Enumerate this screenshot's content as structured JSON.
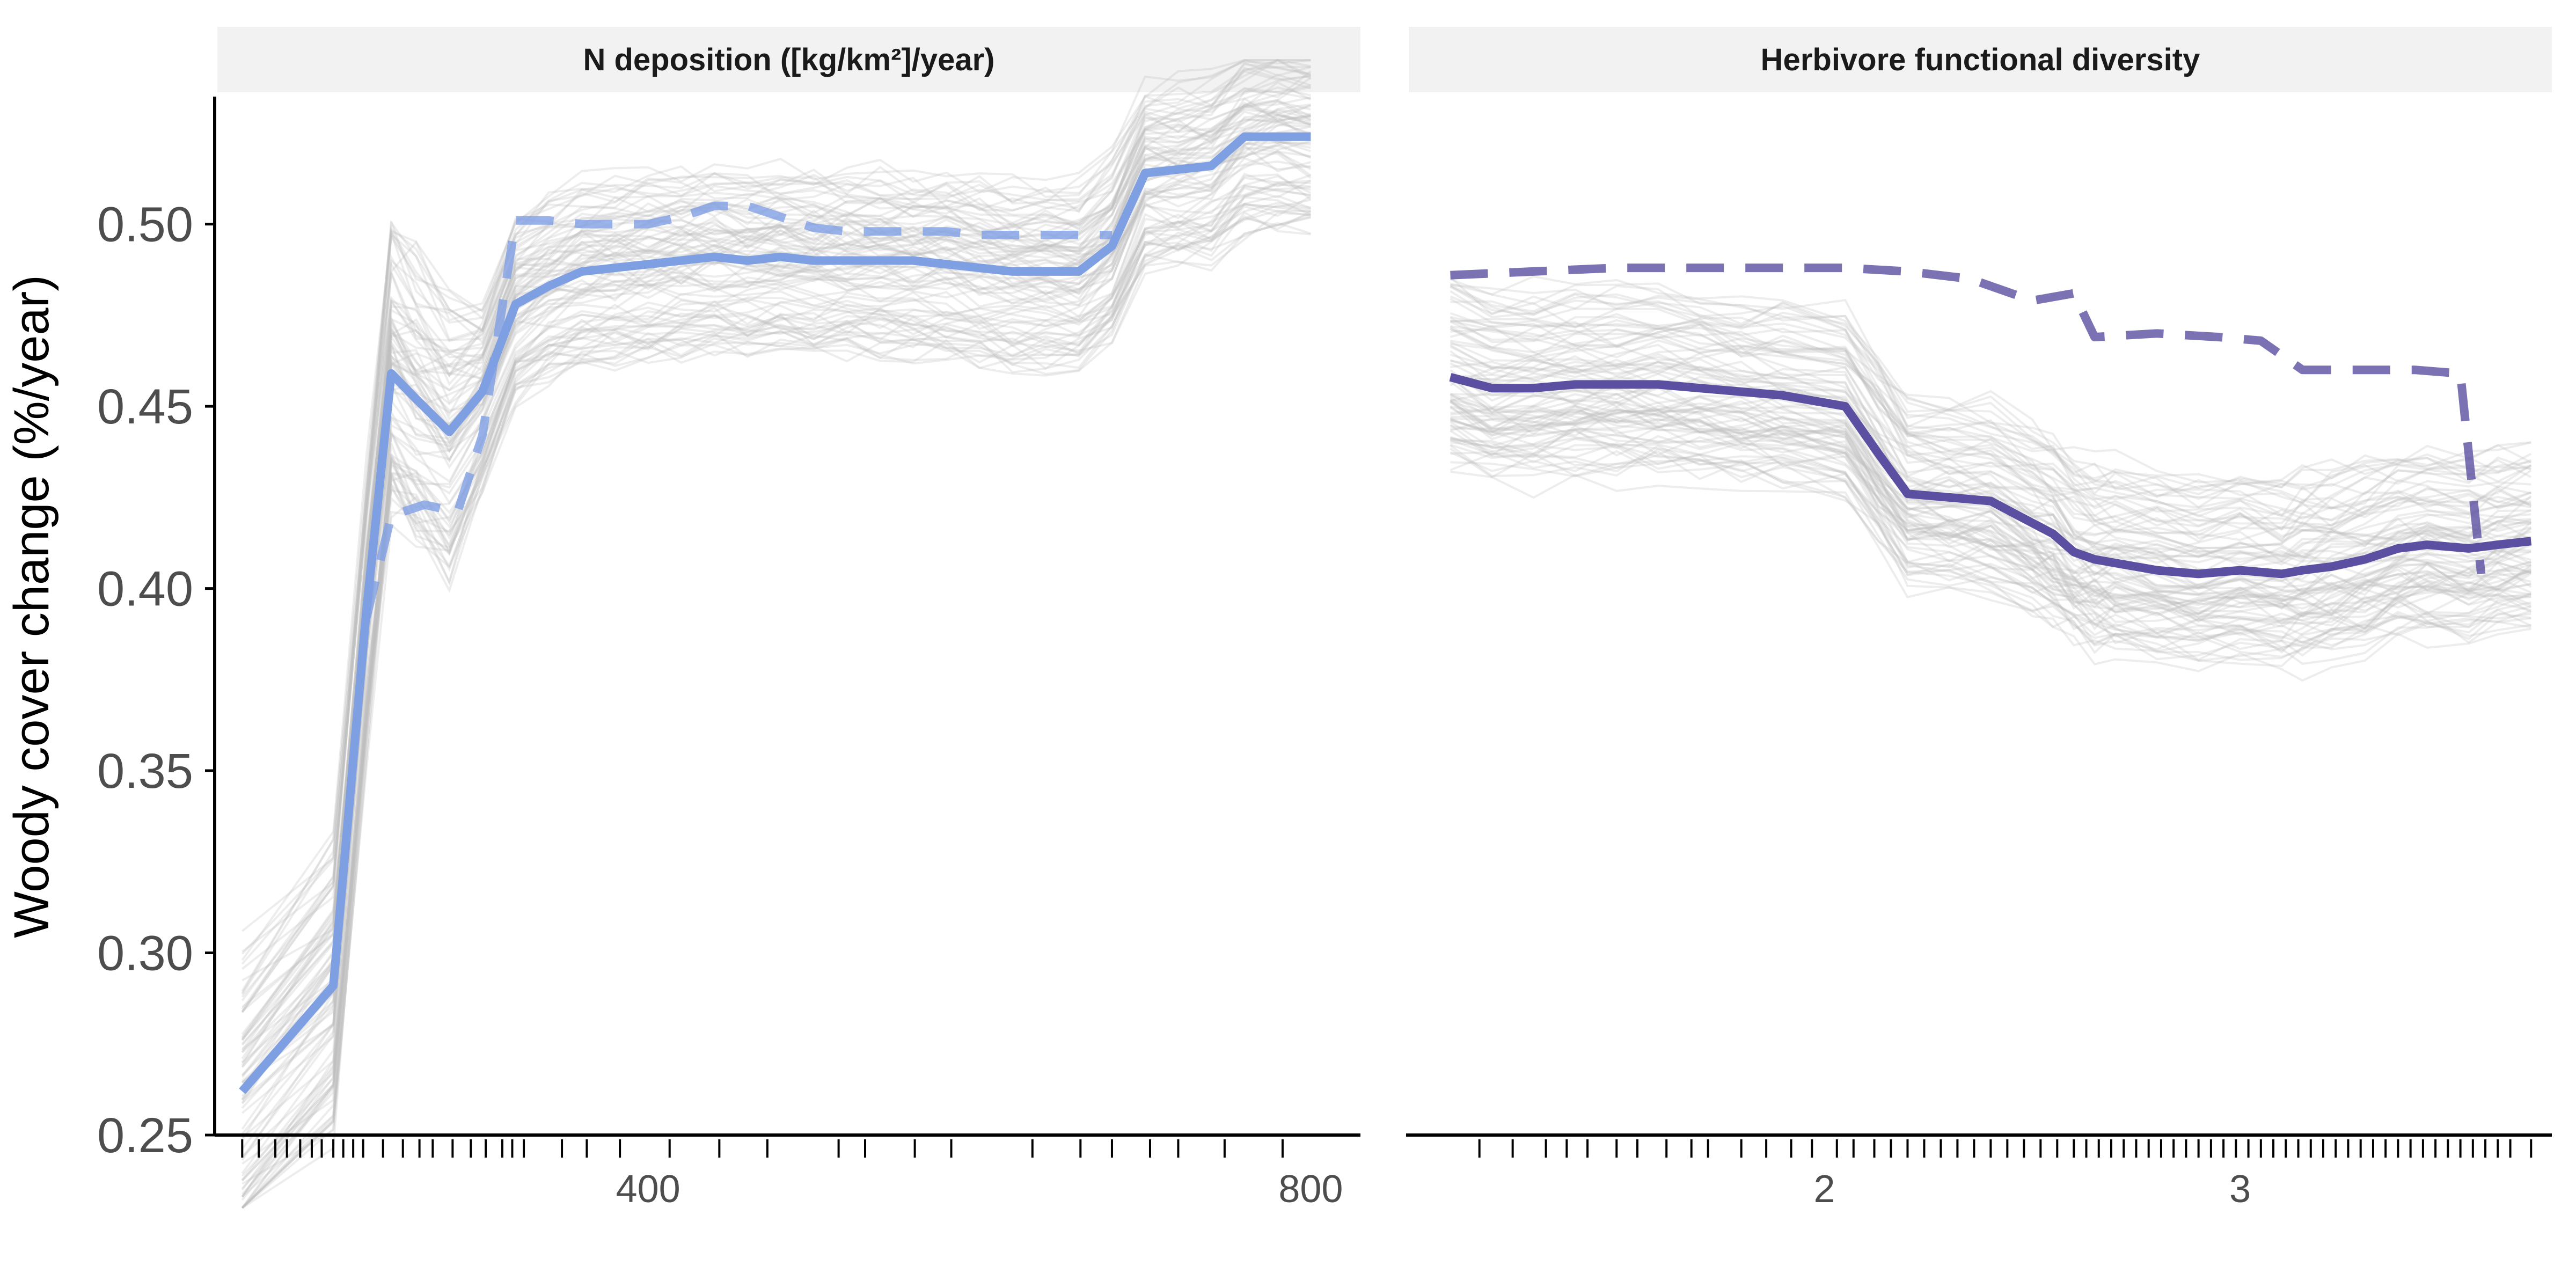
{
  "chart_data": {
    "type": "line",
    "ylabel": "Woody cover change (%/year)",
    "ylim": [
      0.25,
      0.535
    ],
    "yticks": [
      0.25,
      0.3,
      0.35,
      0.4,
      0.45,
      0.5
    ],
    "ytick_labels": [
      "0.25",
      "0.30",
      "0.35",
      "0.40",
      "0.45",
      "0.50"
    ],
    "panels": [
      {
        "strip": "N deposition ([kg/km²]/year)",
        "xlim": [
          140,
          830
        ],
        "xticks": [
          400,
          800
        ],
        "xtick_labels": [
          "400",
          "800"
        ],
        "color": "#7f9fe3",
        "background_lines": {
          "count": 90,
          "color": "#bdbdbd"
        },
        "series": [
          {
            "style": "solid",
            "x": [
              155,
              210,
              230,
              245,
              260,
              280,
              300,
              320,
              340,
              360,
              380,
              400,
              420,
              440,
              460,
              480,
              500,
              520,
              540,
              560,
              580,
              600,
              620,
              640,
              660,
              680,
              700,
              720,
              740,
              760,
              780,
              800
            ],
            "y": [
              0.262,
              0.291,
              0.394,
              0.459,
              0.452,
              0.443,
              0.454,
              0.478,
              0.483,
              0.487,
              0.488,
              0.489,
              0.49,
              0.491,
              0.49,
              0.491,
              0.49,
              0.49,
              0.49,
              0.49,
              0.489,
              0.488,
              0.487,
              0.487,
              0.487,
              0.494,
              0.514,
              0.515,
              0.516,
              0.524,
              0.524,
              0.524
            ]
          },
          {
            "style": "dashed",
            "x": [
              230,
              245,
              265,
              285,
              300,
              320,
              340,
              360,
              380,
              400,
              420,
              440,
              460,
              480,
              500,
              520,
              540,
              560,
              580,
              600,
              620,
              640,
              660,
              680
            ],
            "y": [
              0.392,
              0.42,
              0.423,
              0.421,
              0.442,
              0.501,
              0.501,
              0.5,
              0.5,
              0.5,
              0.502,
              0.505,
              0.505,
              0.502,
              0.499,
              0.498,
              0.498,
              0.498,
              0.498,
              0.497,
              0.497,
              0.497,
              0.497,
              0.497
            ]
          }
        ],
        "rug": [
          155,
          165,
          175,
          182,
          190,
          197,
          203,
          210,
          216,
          222,
          228,
          240,
          252,
          262,
          270,
          282,
          293,
          302,
          312,
          318,
          325,
          348,
          363,
          383,
          413,
          443,
          472,
          515,
          531,
          561,
          583,
          632,
          661,
          680,
          703,
          720,
          748,
          783
        ]
      },
      {
        "strip": "Herbivore functional diversity",
        "xlim": [
          1.0,
          3.75
        ],
        "xticks": [
          2,
          3
        ],
        "xtick_labels": [
          "2",
          "3"
        ],
        "color": "#5a4fa0",
        "background_lines": {
          "count": 90,
          "color": "#bdbdbd"
        },
        "series": [
          {
            "style": "solid",
            "x": [
              1.1,
              1.2,
              1.3,
              1.4,
              1.5,
              1.6,
              1.7,
              1.8,
              1.9,
              2.05,
              2.13,
              2.2,
              2.3,
              2.4,
              2.5,
              2.55,
              2.6,
              2.65,
              2.7,
              2.8,
              2.9,
              3.0,
              3.1,
              3.15,
              3.22,
              3.3,
              3.38,
              3.45,
              3.55,
              3.62,
              3.7
            ],
            "y": [
              0.458,
              0.455,
              0.455,
              0.456,
              0.456,
              0.456,
              0.455,
              0.454,
              0.453,
              0.45,
              0.437,
              0.426,
              0.425,
              0.424,
              0.418,
              0.415,
              0.41,
              0.408,
              0.407,
              0.405,
              0.404,
              0.405,
              0.404,
              0.405,
              0.406,
              0.408,
              0.411,
              0.412,
              0.411,
              0.412,
              0.413
            ]
          },
          {
            "style": "dashed",
            "x": [
              1.1,
              1.3,
              1.5,
              1.7,
              1.9,
              2.05,
              2.2,
              2.35,
              2.5,
              2.6,
              2.65,
              2.8,
              2.95,
              3.05,
              3.15,
              3.22,
              3.3,
              3.42,
              3.53,
              3.58
            ],
            "y": [
              0.486,
              0.487,
              0.488,
              0.488,
              0.488,
              0.488,
              0.487,
              0.485,
              0.479,
              0.481,
              0.469,
              0.47,
              0.469,
              0.468,
              0.46,
              0.46,
              0.46,
              0.46,
              0.459,
              0.404
            ]
          }
        ],
        "rug": [
          1.17,
          1.25,
          1.33,
          1.38,
          1.43,
          1.5,
          1.55,
          1.62,
          1.68,
          1.72,
          1.8,
          1.86,
          1.92,
          1.97,
          2.03,
          2.07,
          2.12,
          2.16,
          2.2,
          2.24,
          2.28,
          2.32,
          2.36,
          2.4,
          2.44,
          2.48,
          2.52,
          2.56,
          2.6,
          2.63,
          2.66,
          2.69,
          2.72,
          2.75,
          2.78,
          2.81,
          2.84,
          2.87,
          2.9,
          2.93,
          2.96,
          2.99,
          3.02,
          3.05,
          3.08,
          3.11,
          3.14,
          3.17,
          3.2,
          3.23,
          3.26,
          3.29,
          3.32,
          3.35,
          3.38,
          3.41,
          3.44,
          3.47,
          3.5,
          3.53,
          3.56,
          3.59,
          3.62,
          3.65,
          3.7
        ]
      }
    ]
  }
}
